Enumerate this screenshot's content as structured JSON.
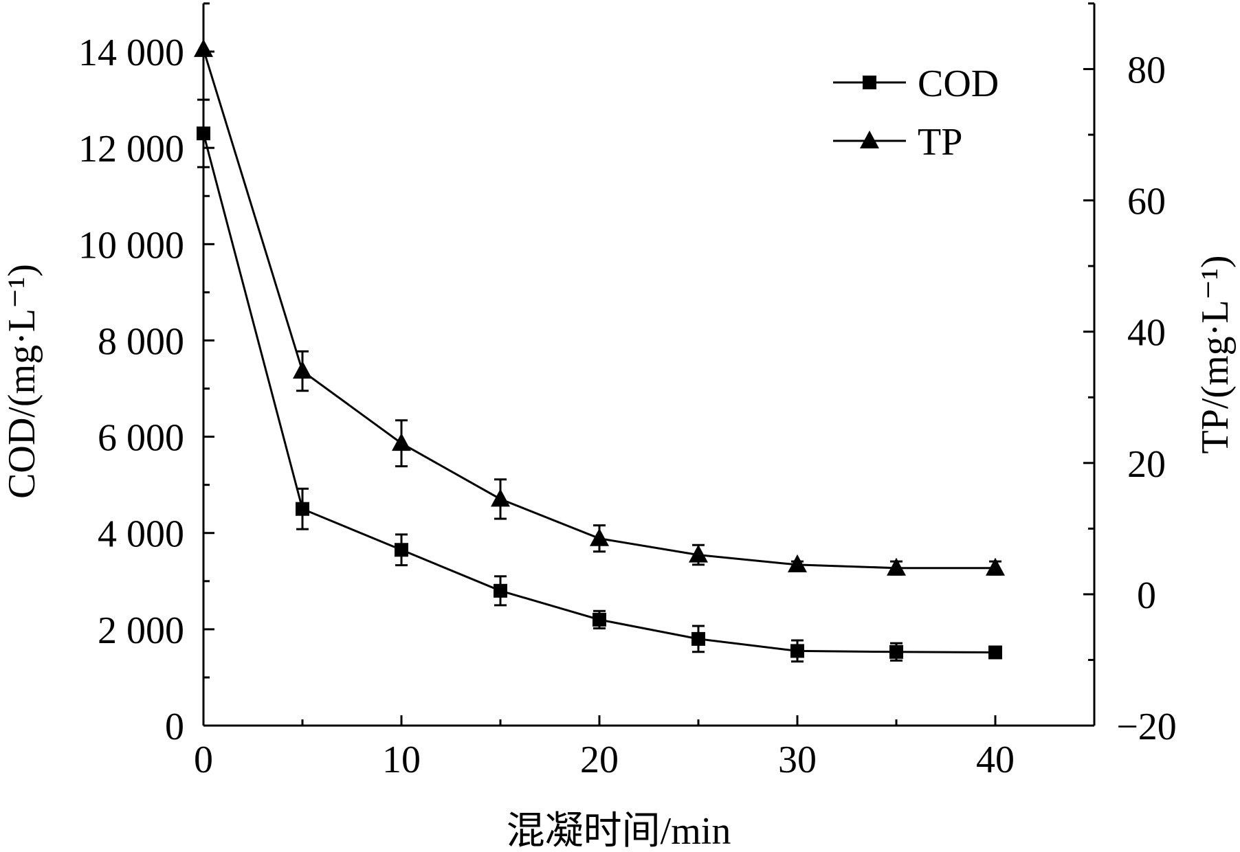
{
  "chart_data": {
    "type": "line",
    "xlabel": "混凝时间/min",
    "ylabel_left": "COD/(mg·L⁻¹)",
    "ylabel_right": "TP/(mg·L⁻¹)",
    "xlim": [
      0,
      45
    ],
    "x_ticks": [
      0,
      10,
      20,
      30,
      40
    ],
    "x_tick_labels": [
      "0",
      "10",
      "20",
      "30",
      "40"
    ],
    "ylim_left": [
      0,
      15000
    ],
    "y_left_ticks": [
      0,
      2000,
      4000,
      6000,
      8000,
      10000,
      12000,
      14000
    ],
    "y_left_tick_labels": [
      "0",
      "2 000",
      "4 000",
      "6 000",
      "8 000",
      "10 000",
      "12 000",
      "14 000"
    ],
    "ylim_right": [
      -20,
      90
    ],
    "y_right_ticks": [
      -20,
      0,
      20,
      40,
      60,
      80
    ],
    "y_right_tick_labels": [
      "−20",
      "0",
      "20",
      "40",
      "60",
      "80"
    ],
    "x": [
      0,
      5,
      10,
      15,
      20,
      25,
      30,
      35,
      40
    ],
    "legend_position": "top-right",
    "series": [
      {
        "name": "COD",
        "axis": "left",
        "marker": "square",
        "values": [
          12300,
          4500,
          3650,
          2800,
          2200,
          1800,
          1550,
          1530,
          1520
        ],
        "errors": [
          700,
          420,
          320,
          300,
          180,
          270,
          220,
          180,
          0
        ]
      },
      {
        "name": "TP",
        "axis": "right",
        "marker": "triangle",
        "values": [
          83,
          34,
          23,
          14.5,
          8.5,
          6,
          4.5,
          4,
          4
        ],
        "errors": [
          0,
          3,
          3.5,
          3,
          2,
          1.5,
          0.5,
          1,
          1
        ]
      }
    ]
  }
}
